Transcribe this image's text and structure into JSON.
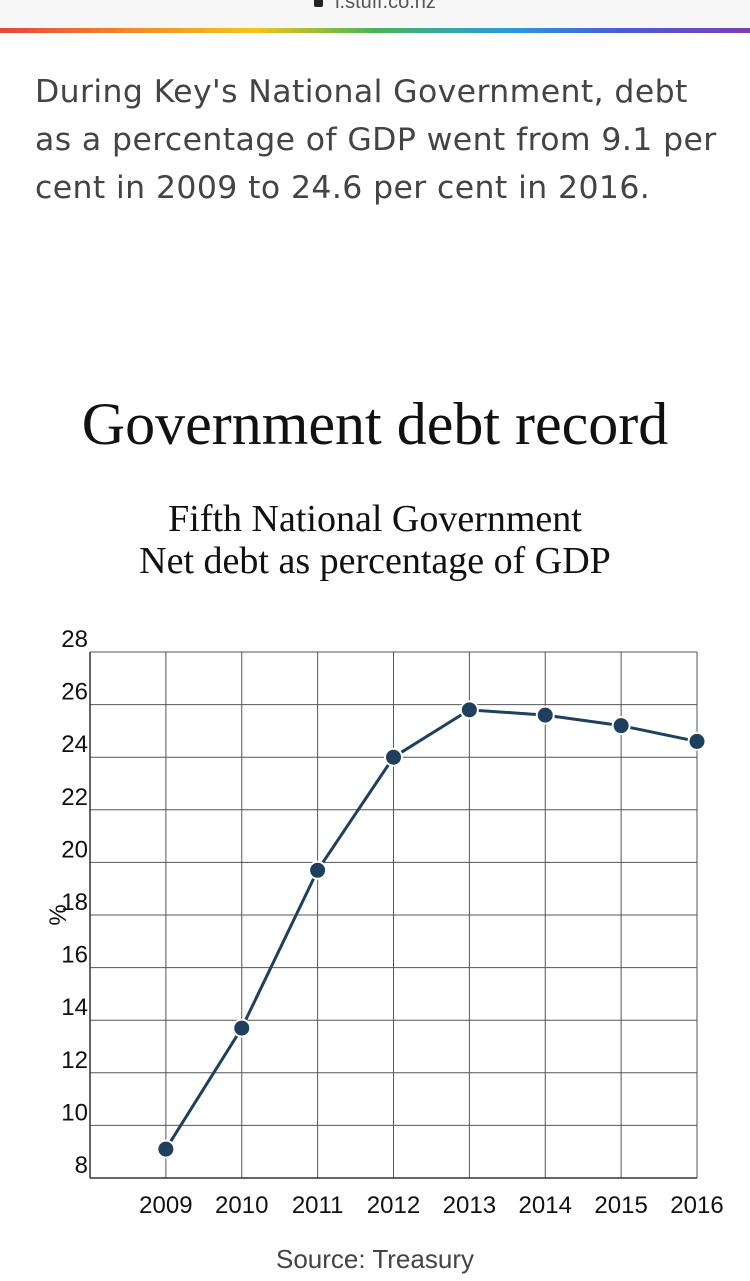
{
  "browser": {
    "url": "i.stuff.co.nz"
  },
  "article": {
    "lede": "During Key's National Government, debt as a percentage of GDP went from 9.1 per cent in 2009 to 24.6 per cent in 2016."
  },
  "chart_data": {
    "type": "line",
    "title": "Government debt record",
    "subtitle_line1": "Fifth National Government",
    "subtitle_line2": "Net debt as percentage of GDP",
    "xlabel": "",
    "ylabel": "%",
    "x": [
      "2009",
      "2010",
      "2011",
      "2012",
      "2013",
      "2014",
      "2015",
      "2016"
    ],
    "series": [
      {
        "values": [
          9.1,
          13.7,
          19.7,
          24.0,
          25.8,
          25.6,
          25.2,
          24.6
        ]
      }
    ],
    "ylim": [
      8,
      28
    ],
    "yticks": [
      8,
      10,
      12,
      14,
      16,
      18,
      20,
      22,
      24,
      26,
      28
    ],
    "grid": true,
    "legend": "none",
    "line_color": "#1f3f5e",
    "source": "Source: Treasury"
  }
}
